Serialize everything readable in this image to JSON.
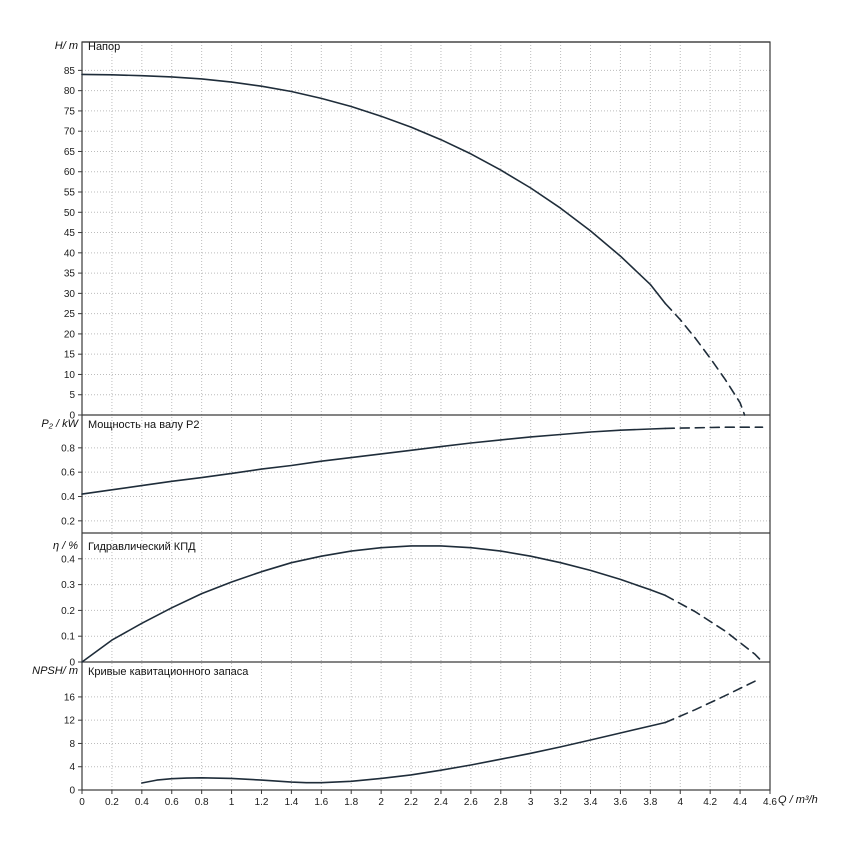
{
  "chart_data": {
    "type": "line",
    "background": "#ffffff",
    "colors": {
      "line": "#1f2d3a",
      "axis": "#3a3a3a",
      "grid": "#bcbcbc",
      "tick_text": "#1a1a1a"
    },
    "x_axis": {
      "label": "Q / m³/h",
      "min": 0,
      "max": 4.6,
      "ticks": [
        [
          0,
          "0"
        ],
        [
          0.2,
          "0.2"
        ],
        [
          0.4,
          "0.4"
        ],
        [
          0.6,
          "0.6"
        ],
        [
          0.8,
          "0.8"
        ],
        [
          1,
          "1"
        ],
        [
          1.2,
          "1.2"
        ],
        [
          1.4,
          "1.4"
        ],
        [
          1.6,
          "1.6"
        ],
        [
          1.8,
          "1.8"
        ],
        [
          2,
          "2"
        ],
        [
          2.2,
          "2.2"
        ],
        [
          2.4,
          "2.4"
        ],
        [
          2.6,
          "2.6"
        ],
        [
          2.8,
          "2.8"
        ],
        [
          3,
          "3"
        ],
        [
          3.2,
          "3.2"
        ],
        [
          3.4,
          "3.4"
        ],
        [
          3.6,
          "3.6"
        ],
        [
          3.8,
          "3.8"
        ],
        [
          4,
          "4"
        ],
        [
          4.2,
          "4.2"
        ],
        [
          4.4,
          "4.4"
        ],
        [
          4.6,
          "4.6"
        ]
      ]
    },
    "panels": [
      {
        "id": "head",
        "y_label": "H/ m",
        "title": "Напор",
        "y_min": 0,
        "y_max": 92,
        "y_ticks": [
          [
            0,
            "0"
          ],
          [
            5,
            "5"
          ],
          [
            10,
            "10"
          ],
          [
            15,
            "15"
          ],
          [
            20,
            "20"
          ],
          [
            25,
            "25"
          ],
          [
            30,
            "30"
          ],
          [
            35,
            "35"
          ],
          [
            40,
            "40"
          ],
          [
            45,
            "45"
          ],
          [
            50,
            "50"
          ],
          [
            55,
            "55"
          ],
          [
            60,
            "60"
          ],
          [
            65,
            "65"
          ],
          [
            70,
            "70"
          ],
          [
            75,
            "75"
          ],
          [
            80,
            "80"
          ],
          [
            85,
            "85"
          ]
        ],
        "series": [
          {
            "name": "head-curve",
            "style": "solid",
            "points": [
              [
                0,
                84
              ],
              [
                0.2,
                83.9
              ],
              [
                0.4,
                83.7
              ],
              [
                0.6,
                83.4
              ],
              [
                0.8,
                82.9
              ],
              [
                1,
                82.1
              ],
              [
                1.2,
                81.1
              ],
              [
                1.4,
                79.8
              ],
              [
                1.6,
                78.1
              ],
              [
                1.8,
                76.1
              ],
              [
                2,
                73.7
              ],
              [
                2.2,
                71
              ],
              [
                2.4,
                67.9
              ],
              [
                2.6,
                64.4
              ],
              [
                2.8,
                60.4
              ],
              [
                3,
                56
              ],
              [
                3.2,
                51
              ],
              [
                3.4,
                45.4
              ],
              [
                3.6,
                39.2
              ],
              [
                3.8,
                32.2
              ],
              [
                3.9,
                27.5
              ]
            ]
          },
          {
            "name": "head-curve-extrapolated",
            "style": "dashed",
            "points": [
              [
                3.9,
                27.5
              ],
              [
                4,
                23.5
              ],
              [
                4.1,
                19
              ],
              [
                4.2,
                14
              ],
              [
                4.3,
                8.8
              ],
              [
                4.4,
                3
              ],
              [
                4.43,
                0
              ]
            ]
          }
        ]
      },
      {
        "id": "power",
        "y_label": "P₂ / kW",
        "title": "Мощность на валу P2",
        "y_min": 0.1,
        "y_max": 1.07,
        "y_ticks": [
          [
            0.2,
            "0.2"
          ],
          [
            0.4,
            "0.4"
          ],
          [
            0.6,
            "0.6"
          ],
          [
            0.8,
            "0.8"
          ]
        ],
        "series": [
          {
            "name": "power-curve",
            "style": "solid",
            "points": [
              [
                0,
                0.42
              ],
              [
                0.2,
                0.455
              ],
              [
                0.4,
                0.49
              ],
              [
                0.6,
                0.525
              ],
              [
                0.8,
                0.555
              ],
              [
                1,
                0.59
              ],
              [
                1.2,
                0.625
              ],
              [
                1.4,
                0.655
              ],
              [
                1.6,
                0.69
              ],
              [
                1.8,
                0.72
              ],
              [
                2,
                0.75
              ],
              [
                2.2,
                0.78
              ],
              [
                2.4,
                0.81
              ],
              [
                2.6,
                0.84
              ],
              [
                2.8,
                0.865
              ],
              [
                3,
                0.89
              ],
              [
                3.2,
                0.91
              ],
              [
                3.4,
                0.93
              ],
              [
                3.6,
                0.945
              ],
              [
                3.8,
                0.955
              ],
              [
                3.9,
                0.96
              ]
            ]
          },
          {
            "name": "power-curve-extrapolated",
            "style": "dashed",
            "points": [
              [
                3.9,
                0.96
              ],
              [
                4.1,
                0.965
              ],
              [
                4.3,
                0.97
              ],
              [
                4.55,
                0.97
              ]
            ]
          }
        ]
      },
      {
        "id": "efficiency",
        "y_label": "η / %",
        "title": "Гидравлический КПД",
        "y_min": 0,
        "y_max": 0.5,
        "y_ticks": [
          [
            0,
            "0"
          ],
          [
            0.1,
            "0.1"
          ],
          [
            0.2,
            "0.2"
          ],
          [
            0.3,
            "0.3"
          ],
          [
            0.4,
            "0.4"
          ]
        ],
        "series": [
          {
            "name": "efficiency-curve",
            "style": "solid",
            "points": [
              [
                0,
                0
              ],
              [
                0.2,
                0.085
              ],
              [
                0.4,
                0.15
              ],
              [
                0.6,
                0.21
              ],
              [
                0.8,
                0.265
              ],
              [
                1,
                0.31
              ],
              [
                1.2,
                0.35
              ],
              [
                1.4,
                0.385
              ],
              [
                1.6,
                0.41
              ],
              [
                1.8,
                0.43
              ],
              [
                2,
                0.443
              ],
              [
                2.2,
                0.45
              ],
              [
                2.4,
                0.45
              ],
              [
                2.6,
                0.443
              ],
              [
                2.8,
                0.43
              ],
              [
                3,
                0.41
              ],
              [
                3.2,
                0.385
              ],
              [
                3.4,
                0.355
              ],
              [
                3.6,
                0.32
              ],
              [
                3.8,
                0.28
              ],
              [
                3.9,
                0.258
              ]
            ]
          },
          {
            "name": "efficiency-curve-extrapolated",
            "style": "dashed",
            "points": [
              [
                3.9,
                0.258
              ],
              [
                4.1,
                0.195
              ],
              [
                4.3,
                0.12
              ],
              [
                4.5,
                0.03
              ],
              [
                4.55,
                0
              ]
            ]
          }
        ]
      },
      {
        "id": "npsh",
        "y_label": "NPSH/ m",
        "title": "Кривые кавитационного запаса",
        "y_min": 0,
        "y_max": 22,
        "y_ticks": [
          [
            0,
            "0"
          ],
          [
            4,
            "4"
          ],
          [
            8,
            "8"
          ],
          [
            12,
            "12"
          ],
          [
            16,
            "16"
          ]
        ],
        "series": [
          {
            "name": "npsh-curve",
            "style": "solid",
            "points": [
              [
                0.4,
                1.2
              ],
              [
                0.5,
                1.7
              ],
              [
                0.6,
                1.95
              ],
              [
                0.7,
                2.05
              ],
              [
                0.8,
                2.1
              ],
              [
                1,
                2
              ],
              [
                1.2,
                1.7
              ],
              [
                1.4,
                1.35
              ],
              [
                1.5,
                1.25
              ],
              [
                1.6,
                1.25
              ],
              [
                1.8,
                1.5
              ],
              [
                2,
                2
              ],
              [
                2.2,
                2.6
              ],
              [
                2.4,
                3.4
              ],
              [
                2.6,
                4.3
              ],
              [
                2.8,
                5.3
              ],
              [
                3,
                6.3
              ],
              [
                3.2,
                7.4
              ],
              [
                3.4,
                8.6
              ],
              [
                3.6,
                9.8
              ],
              [
                3.8,
                11
              ],
              [
                3.9,
                11.6
              ]
            ]
          },
          {
            "name": "npsh-curve-extrapolated",
            "style": "dashed",
            "points": [
              [
                3.9,
                11.6
              ],
              [
                4.1,
                13.8
              ],
              [
                4.3,
                16.2
              ],
              [
                4.5,
                18.7
              ]
            ]
          }
        ]
      }
    ]
  }
}
